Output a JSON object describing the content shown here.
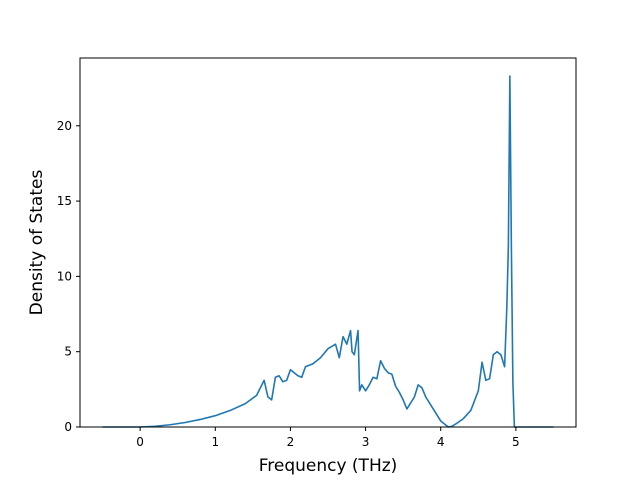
{
  "chart_data": {
    "type": "line",
    "title": "",
    "xlabel": "Frequency (THz)",
    "ylabel": "Density of States",
    "xlim": [
      -0.8,
      5.8
    ],
    "ylim": [
      0,
      24.5
    ],
    "grid": false,
    "legend": "none",
    "x_ticks": [
      0,
      1,
      2,
      3,
      4,
      5
    ],
    "y_ticks": [
      0,
      5,
      10,
      15,
      20
    ],
    "x_tick_labels": [
      "0",
      "1",
      "2",
      "3",
      "4",
      "5"
    ],
    "y_tick_labels": [
      "0",
      "5",
      "10",
      "15",
      "20"
    ],
    "series": [
      {
        "color": "#1f77b4",
        "x": [
          -0.5,
          -0.3,
          -0.1,
          0.0,
          0.2,
          0.4,
          0.6,
          0.8,
          1.0,
          1.2,
          1.4,
          1.55,
          1.65,
          1.7,
          1.75,
          1.8,
          1.85,
          1.9,
          1.95,
          2.0,
          2.05,
          2.1,
          2.15,
          2.2,
          2.3,
          2.4,
          2.5,
          2.6,
          2.65,
          2.7,
          2.75,
          2.8,
          2.82,
          2.85,
          2.9,
          2.92,
          2.95,
          3.0,
          3.05,
          3.1,
          3.15,
          3.2,
          3.25,
          3.3,
          3.35,
          3.4,
          3.45,
          3.5,
          3.55,
          3.6,
          3.65,
          3.7,
          3.75,
          3.8,
          3.9,
          4.0,
          4.1,
          4.15,
          4.2,
          4.3,
          4.4,
          4.5,
          4.55,
          4.6,
          4.65,
          4.7,
          4.75,
          4.8,
          4.85,
          4.88,
          4.9,
          4.92,
          4.94,
          4.96,
          4.98,
          5.0,
          5.2,
          5.5
        ],
        "y": [
          0.0,
          0.0,
          0.0,
          0.0,
          0.05,
          0.15,
          0.3,
          0.5,
          0.75,
          1.1,
          1.55,
          2.1,
          3.1,
          2.0,
          1.8,
          3.3,
          3.4,
          3.0,
          3.1,
          3.8,
          3.6,
          3.4,
          3.3,
          4.0,
          4.2,
          4.6,
          5.2,
          5.5,
          4.6,
          6.0,
          5.5,
          6.4,
          5.0,
          4.8,
          6.4,
          2.4,
          2.8,
          2.4,
          2.8,
          3.3,
          3.2,
          4.4,
          3.9,
          3.6,
          3.5,
          2.7,
          2.3,
          1.8,
          1.2,
          1.6,
          2.0,
          2.8,
          2.6,
          2.0,
          1.2,
          0.4,
          0.0,
          0.05,
          0.2,
          0.55,
          1.1,
          2.4,
          4.3,
          3.1,
          3.2,
          4.8,
          5.0,
          4.8,
          4.0,
          8.0,
          12.0,
          23.3,
          12.0,
          3.0,
          0.0,
          0.0,
          0.0,
          0.0
        ]
      }
    ]
  }
}
